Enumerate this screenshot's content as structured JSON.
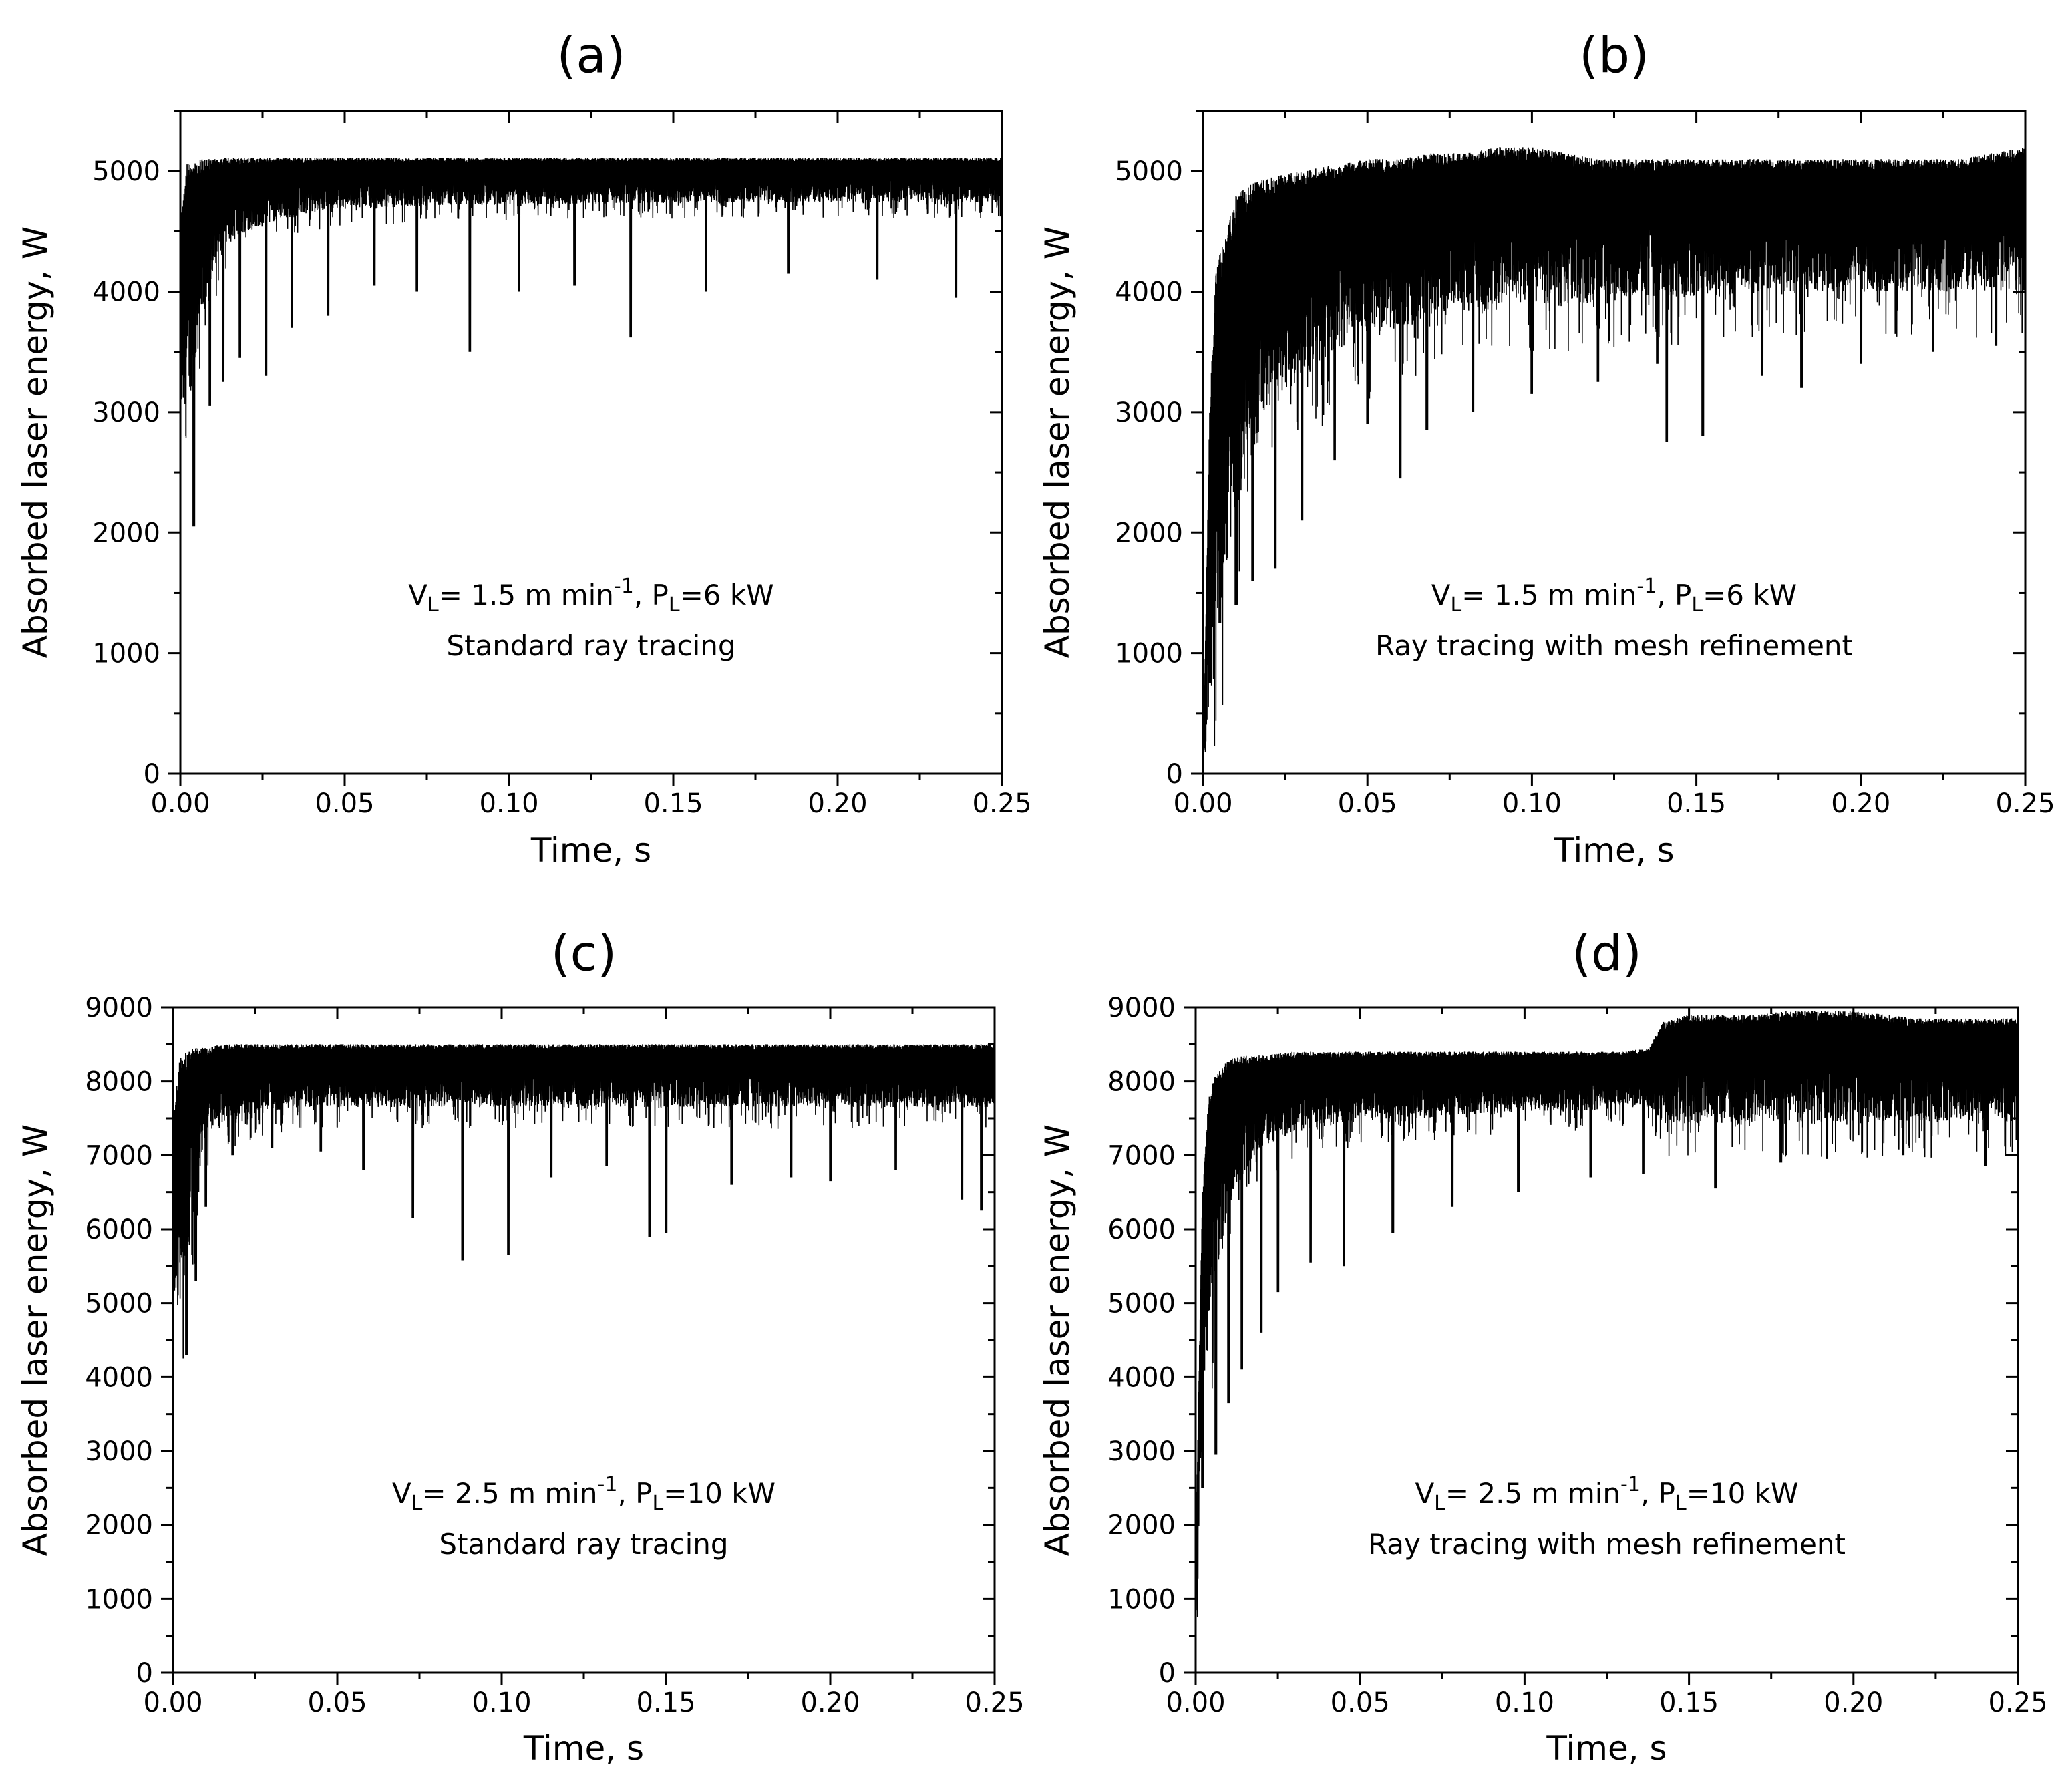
{
  "colors": {
    "background": "#ffffff",
    "trace": "#000000"
  },
  "chart_data": [
    {
      "type": "line",
      "panel": "(a)",
      "title": "(a)",
      "xlabel": "Time, s",
      "ylabel": "Absorbed laser energy, W",
      "xlim": [
        0,
        0.25
      ],
      "ylim": [
        0,
        5500
      ],
      "xticks": [
        0,
        0.05,
        0.1,
        0.15,
        0.2,
        0.25
      ],
      "xtick_labels": [
        "0.00",
        "0.05",
        "0.10",
        "0.15",
        "0.20",
        "0.25"
      ],
      "yticks": [
        0,
        1000,
        2000,
        3000,
        4000,
        5000
      ],
      "ytick_labels": [
        "0",
        "1000",
        "2000",
        "3000",
        "4000",
        "5000"
      ],
      "annotation": {
        "v": "V",
        "v_sub": "L",
        "v_text": "= 1.5 m min",
        "v_sup": "-1",
        "p": ", P",
        "p_sub": "L",
        "p_text": "=6 kW",
        "method": "Standard ray tracing"
      },
      "series": [
        {
          "name": "Absorbed laser energy",
          "x": [
            0,
            0.002,
            0.004,
            0.006,
            0.008,
            0.01,
            0.015,
            0.02,
            0.03,
            0.04,
            0.05,
            0.06,
            0.07,
            0.08,
            0.09,
            0.1,
            0.11,
            0.12,
            0.13,
            0.14,
            0.15,
            0.16,
            0.17,
            0.18,
            0.19,
            0.2,
            0.21,
            0.22,
            0.23,
            0.24,
            0.25
          ],
          "upper": [
            4600,
            5060,
            5080,
            5100,
            5100,
            5100,
            5110,
            5110,
            5110,
            5110,
            5110,
            5110,
            5110,
            5110,
            5110,
            5110,
            5110,
            5110,
            5110,
            5110,
            5110,
            5110,
            5110,
            5110,
            5110,
            5110,
            5110,
            5110,
            5110,
            5110,
            5110
          ],
          "lower": [
            2900,
            3000,
            3300,
            3600,
            3900,
            4200,
            4400,
            4500,
            4600,
            4650,
            4700,
            4700,
            4700,
            4720,
            4720,
            4720,
            4720,
            4730,
            4730,
            4730,
            4730,
            4740,
            4740,
            4740,
            4740,
            4740,
            4740,
            4740,
            4740,
            4740,
            4740
          ],
          "spikes": [
            [
              0.004,
              2050
            ],
            [
              0.009,
              3050
            ],
            [
              0.013,
              3250
            ],
            [
              0.018,
              3450
            ],
            [
              0.026,
              3300
            ],
            [
              0.034,
              3700
            ],
            [
              0.045,
              3800
            ],
            [
              0.059,
              4050
            ],
            [
              0.072,
              4000
            ],
            [
              0.088,
              3500
            ],
            [
              0.103,
              4000
            ],
            [
              0.12,
              4050
            ],
            [
              0.137,
              3620
            ],
            [
              0.16,
              4000
            ],
            [
              0.185,
              4150
            ],
            [
              0.212,
              4100
            ],
            [
              0.236,
              3950
            ]
          ]
        }
      ]
    },
    {
      "type": "line",
      "panel": "(b)",
      "title": "(b)",
      "xlabel": "Time, s",
      "ylabel": "Absorbed laser energy, W",
      "xlim": [
        0,
        0.25
      ],
      "ylim": [
        0,
        5500
      ],
      "xticks": [
        0,
        0.05,
        0.1,
        0.15,
        0.2,
        0.25
      ],
      "xtick_labels": [
        "0.00",
        "0.05",
        "0.10",
        "0.15",
        "0.20",
        "0.25"
      ],
      "yticks": [
        0,
        1000,
        2000,
        3000,
        4000,
        5000
      ],
      "ytick_labels": [
        "0",
        "1000",
        "2000",
        "3000",
        "4000",
        "5000"
      ],
      "annotation": {
        "v": "V",
        "v_sub": "L",
        "v_text": "= 1.5 m min",
        "v_sup": "-1",
        "p": ", P",
        "p_sub": "L",
        "p_text": "=6 kW",
        "method": "Ray tracing with mesh refinement"
      },
      "series": [
        {
          "name": "Absorbed laser energy",
          "x": [
            0,
            0.002,
            0.004,
            0.006,
            0.008,
            0.01,
            0.015,
            0.02,
            0.03,
            0.04,
            0.05,
            0.06,
            0.07,
            0.08,
            0.09,
            0.1,
            0.11,
            0.12,
            0.13,
            0.14,
            0.15,
            0.16,
            0.17,
            0.18,
            0.19,
            0.2,
            0.21,
            0.22,
            0.23,
            0.24,
            0.25
          ],
          "upper": [
            0,
            3000,
            4200,
            4400,
            4600,
            4800,
            4900,
            4950,
            5000,
            5050,
            5100,
            5100,
            5150,
            5150,
            5200,
            5200,
            5150,
            5100,
            5100,
            5100,
            5100,
            5100,
            5100,
            5100,
            5100,
            5100,
            5100,
            5100,
            5100,
            5150,
            5200
          ],
          "lower": [
            0,
            500,
            1200,
            1500,
            1800,
            2200,
            2600,
            3000,
            3300,
            3500,
            3600,
            3700,
            3800,
            3850,
            3900,
            3900,
            3900,
            3900,
            3950,
            3950,
            3950,
            3950,
            4000,
            4000,
            4000,
            4000,
            4000,
            4000,
            4000,
            4000,
            4000
          ],
          "spikes": [
            [
              0.002,
              750
            ],
            [
              0.005,
              1250
            ],
            [
              0.01,
              1400
            ],
            [
              0.015,
              1600
            ],
            [
              0.022,
              1700
            ],
            [
              0.03,
              2100
            ],
            [
              0.04,
              2600
            ],
            [
              0.05,
              2900
            ],
            [
              0.06,
              2450
            ],
            [
              0.068,
              2850
            ],
            [
              0.082,
              3000
            ],
            [
              0.1,
              3150
            ],
            [
              0.12,
              3250
            ],
            [
              0.138,
              3400
            ],
            [
              0.141,
              2750
            ],
            [
              0.152,
              2800
            ],
            [
              0.17,
              3300
            ],
            [
              0.182,
              3200
            ],
            [
              0.2,
              3400
            ],
            [
              0.222,
              3500
            ],
            [
              0.241,
              3550
            ]
          ]
        }
      ]
    },
    {
      "type": "line",
      "panel": "(c)",
      "title": "(c)",
      "xlabel": "Time, s",
      "ylabel": "Absorbed laser energy, W",
      "xlim": [
        0,
        0.25
      ],
      "ylim": [
        0,
        9000
      ],
      "xticks": [
        0,
        0.05,
        0.1,
        0.15,
        0.2,
        0.25
      ],
      "xtick_labels": [
        "0.00",
        "0.05",
        "0.10",
        "0.15",
        "0.20",
        "0.25"
      ],
      "yticks": [
        0,
        1000,
        2000,
        3000,
        4000,
        5000,
        6000,
        7000,
        8000,
        9000
      ],
      "ytick_labels": [
        "0",
        "1000",
        "2000",
        "3000",
        "4000",
        "5000",
        "6000",
        "7000",
        "8000",
        "9000"
      ],
      "annotation": {
        "v": "V",
        "v_sub": "L",
        "v_text": "= 2.5 m min",
        "v_sup": "-1",
        "p": ", P",
        "p_sub": "L",
        "p_text": "=10 kW",
        "method": "Standard ray tracing"
      },
      "series": [
        {
          "name": "Absorbed laser energy",
          "x": [
            0,
            0.002,
            0.004,
            0.006,
            0.008,
            0.01,
            0.015,
            0.02,
            0.03,
            0.04,
            0.05,
            0.06,
            0.07,
            0.08,
            0.09,
            0.1,
            0.11,
            0.12,
            0.13,
            0.14,
            0.15,
            0.16,
            0.17,
            0.18,
            0.19,
            0.2,
            0.21,
            0.22,
            0.23,
            0.24,
            0.25
          ],
          "upper": [
            7400,
            8350,
            8400,
            8450,
            8450,
            8450,
            8500,
            8500,
            8500,
            8500,
            8500,
            8500,
            8500,
            8500,
            8500,
            8500,
            8500,
            8500,
            8500,
            8500,
            8500,
            8500,
            8500,
            8500,
            8500,
            8500,
            8500,
            8500,
            8500,
            8500,
            8500
          ],
          "lower": [
            4900,
            5000,
            5400,
            6100,
            6800,
            7200,
            7400,
            7500,
            7600,
            7650,
            7650,
            7650,
            7650,
            7650,
            7650,
            7650,
            7650,
            7650,
            7650,
            7650,
            7650,
            7650,
            7650,
            7650,
            7650,
            7650,
            7650,
            7650,
            7650,
            7650,
            7650
          ],
          "spikes": [
            [
              0.004,
              4300
            ],
            [
              0.007,
              5300
            ],
            [
              0.01,
              6300
            ],
            [
              0.018,
              7000
            ],
            [
              0.03,
              7100
            ],
            [
              0.045,
              7050
            ],
            [
              0.058,
              6800
            ],
            [
              0.073,
              6150
            ],
            [
              0.088,
              5580
            ],
            [
              0.102,
              5650
            ],
            [
              0.115,
              6700
            ],
            [
              0.132,
              6850
            ],
            [
              0.145,
              5900
            ],
            [
              0.15,
              5950
            ],
            [
              0.17,
              6600
            ],
            [
              0.188,
              6700
            ],
            [
              0.2,
              6650
            ],
            [
              0.22,
              6800
            ],
            [
              0.24,
              6400
            ],
            [
              0.246,
              6250
            ]
          ]
        }
      ]
    },
    {
      "type": "line",
      "panel": "(d)",
      "title": "(d)",
      "xlabel": "Time, s",
      "ylabel": "Absorbed laser energy, W",
      "xlim": [
        0,
        0.25
      ],
      "ylim": [
        0,
        9000
      ],
      "xticks": [
        0,
        0.05,
        0.1,
        0.15,
        0.2,
        0.25
      ],
      "xtick_labels": [
        "0.00",
        "0.05",
        "0.10",
        "0.15",
        "0.20",
        "0.25"
      ],
      "yticks": [
        0,
        1000,
        2000,
        3000,
        4000,
        5000,
        6000,
        7000,
        8000,
        9000
      ],
      "ytick_labels": [
        "0",
        "1000",
        "2000",
        "3000",
        "4000",
        "5000",
        "6000",
        "7000",
        "8000",
        "9000"
      ],
      "annotation": {
        "v": "V",
        "v_sub": "L",
        "v_text": "= 2.5 m min",
        "v_sup": "-1",
        "p": ", P",
        "p_sub": "L",
        "p_text": "=10 kW",
        "method": "Ray tracing with mesh refinement"
      },
      "series": [
        {
          "name": "Absorbed laser energy",
          "x": [
            0,
            0.002,
            0.004,
            0.006,
            0.008,
            0.01,
            0.015,
            0.02,
            0.03,
            0.04,
            0.05,
            0.06,
            0.07,
            0.08,
            0.09,
            0.1,
            0.11,
            0.12,
            0.13,
            0.138,
            0.142,
            0.15,
            0.16,
            0.17,
            0.18,
            0.19,
            0.2,
            0.21,
            0.22,
            0.23,
            0.24,
            0.25
          ],
          "upper": [
            1500,
            6500,
            7800,
            8100,
            8200,
            8300,
            8350,
            8350,
            8400,
            8400,
            8400,
            8400,
            8400,
            8400,
            8400,
            8400,
            8400,
            8400,
            8400,
            8450,
            8800,
            8900,
            8900,
            8900,
            8950,
            8950,
            8950,
            8900,
            8850,
            8850,
            8850,
            8850
          ],
          "lower": [
            500,
            3500,
            4500,
            5200,
            5800,
            6300,
            6800,
            7100,
            7300,
            7400,
            7450,
            7500,
            7500,
            7550,
            7550,
            7600,
            7600,
            7600,
            7650,
            7650,
            7450,
            7400,
            7450,
            7450,
            7450,
            7450,
            7450,
            7450,
            7450,
            7450,
            7450,
            7450
          ],
          "spikes": [
            [
              0.002,
              2500
            ],
            [
              0.006,
              2950
            ],
            [
              0.01,
              3650
            ],
            [
              0.014,
              4100
            ],
            [
              0.02,
              4600
            ],
            [
              0.025,
              5150
            ],
            [
              0.035,
              5550
            ],
            [
              0.045,
              5500
            ],
            [
              0.06,
              5950
            ],
            [
              0.078,
              6300
            ],
            [
              0.098,
              6500
            ],
            [
              0.12,
              6700
            ],
            [
              0.136,
              6750
            ],
            [
              0.158,
              6550
            ],
            [
              0.178,
              6900
            ],
            [
              0.192,
              6950
            ],
            [
              0.215,
              7000
            ],
            [
              0.24,
              6850
            ]
          ]
        }
      ]
    }
  ]
}
